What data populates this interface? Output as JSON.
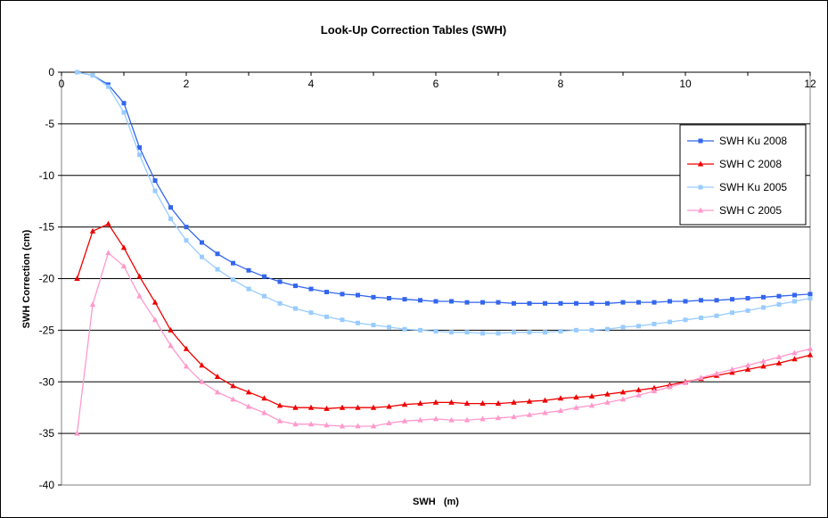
{
  "chart_data": {
    "type": "line",
    "title": "Look-Up Correction Tables (SWH)",
    "xlabel": "SWH   (m)",
    "ylabel": "SWH Correction (cm)",
    "xlim": [
      0,
      12
    ],
    "ylim": [
      -40,
      0
    ],
    "xticks": [
      0,
      2,
      4,
      6,
      8,
      10,
      12
    ],
    "yticks": [
      0,
      -5,
      -10,
      -15,
      -20,
      -25,
      -30,
      -35,
      -40
    ],
    "x_tick_labels": [
      "0",
      "2",
      "4",
      "6",
      "8",
      "10",
      "12"
    ],
    "y_tick_labels": [
      "0",
      "-5",
      "-10",
      "-15",
      "-20",
      "-25",
      "-30",
      "-35",
      "-40"
    ],
    "grid": "horizontal major gridlines",
    "legend_position": "right",
    "x": [
      0.25,
      0.5,
      0.75,
      1.0,
      1.25,
      1.5,
      1.75,
      2.0,
      2.25,
      2.5,
      2.75,
      3.0,
      3.25,
      3.5,
      3.75,
      4.0,
      4.25,
      4.5,
      4.75,
      5.0,
      5.25,
      5.5,
      5.75,
      6.0,
      6.25,
      6.5,
      6.75,
      7.0,
      7.25,
      7.5,
      7.75,
      8.0,
      8.25,
      8.5,
      8.75,
      9.0,
      9.25,
      9.5,
      9.75,
      10.0,
      10.25,
      10.5,
      10.75,
      11.0,
      11.25,
      11.5,
      11.75,
      12.0
    ],
    "series": [
      {
        "name": "SWH Ku 2008",
        "color": "#3366ee",
        "marker": "square",
        "values": [
          0,
          -0.3,
          -1.2,
          -3.0,
          -7.3,
          -10.5,
          -13.1,
          -15.0,
          -16.5,
          -17.6,
          -18.5,
          -19.2,
          -19.8,
          -20.3,
          -20.7,
          -21.0,
          -21.3,
          -21.5,
          -21.6,
          -21.8,
          -21.9,
          -22.0,
          -22.1,
          -22.2,
          -22.2,
          -22.3,
          -22.3,
          -22.3,
          -22.4,
          -22.4,
          -22.4,
          -22.4,
          -22.4,
          -22.4,
          -22.4,
          -22.3,
          -22.3,
          -22.3,
          -22.2,
          -22.2,
          -22.1,
          -22.1,
          -22.0,
          -21.9,
          -21.8,
          -21.7,
          -21.6,
          -21.5
        ]
      },
      {
        "name": "SWH C 2008",
        "color": "#ee0000",
        "marker": "triangle",
        "values": [
          -20.0,
          -15.4,
          -14.7,
          -17.0,
          -19.8,
          -22.3,
          -25.0,
          -26.8,
          -28.4,
          -29.5,
          -30.4,
          -31.0,
          -31.6,
          -32.3,
          -32.5,
          -32.5,
          -32.6,
          -32.5,
          -32.5,
          -32.5,
          -32.4,
          -32.2,
          -32.1,
          -32.0,
          -32.0,
          -32.1,
          -32.1,
          -32.1,
          -32.0,
          -31.9,
          -31.8,
          -31.6,
          -31.5,
          -31.4,
          -31.2,
          -31.0,
          -30.8,
          -30.6,
          -30.3,
          -30.0,
          -29.7,
          -29.4,
          -29.1,
          -28.8,
          -28.5,
          -28.2,
          -27.8,
          -27.4
        ]
      },
      {
        "name": "SWH Ku 2005",
        "color": "#99ccff",
        "marker": "square",
        "values": [
          0,
          -0.3,
          -1.4,
          -3.9,
          -8.0,
          -11.5,
          -14.2,
          -16.3,
          -17.9,
          -19.1,
          -20.1,
          -21.0,
          -21.7,
          -22.4,
          -22.9,
          -23.3,
          -23.7,
          -24.0,
          -24.3,
          -24.5,
          -24.7,
          -24.9,
          -25.0,
          -25.1,
          -25.2,
          -25.2,
          -25.3,
          -25.3,
          -25.2,
          -25.2,
          -25.2,
          -25.1,
          -25.0,
          -25.0,
          -24.9,
          -24.7,
          -24.6,
          -24.4,
          -24.2,
          -24.0,
          -23.8,
          -23.6,
          -23.3,
          -23.1,
          -22.8,
          -22.5,
          -22.2,
          -21.9
        ]
      },
      {
        "name": "SWH C 2005",
        "color": "#ff99cc",
        "marker": "triangle",
        "values": [
          -35.0,
          -22.5,
          -17.5,
          -18.8,
          -21.7,
          -24.0,
          -26.5,
          -28.5,
          -30.0,
          -31.0,
          -31.7,
          -32.4,
          -33.0,
          -33.8,
          -34.1,
          -34.1,
          -34.2,
          -34.3,
          -34.3,
          -34.3,
          -34.0,
          -33.8,
          -33.7,
          -33.6,
          -33.7,
          -33.7,
          -33.6,
          -33.5,
          -33.4,
          -33.2,
          -33.0,
          -32.8,
          -32.5,
          -32.3,
          -32.0,
          -31.7,
          -31.3,
          -30.9,
          -30.5,
          -30.1,
          -29.6,
          -29.2,
          -28.8,
          -28.4,
          -28.0,
          -27.6,
          -27.2,
          -26.8
        ]
      }
    ]
  }
}
